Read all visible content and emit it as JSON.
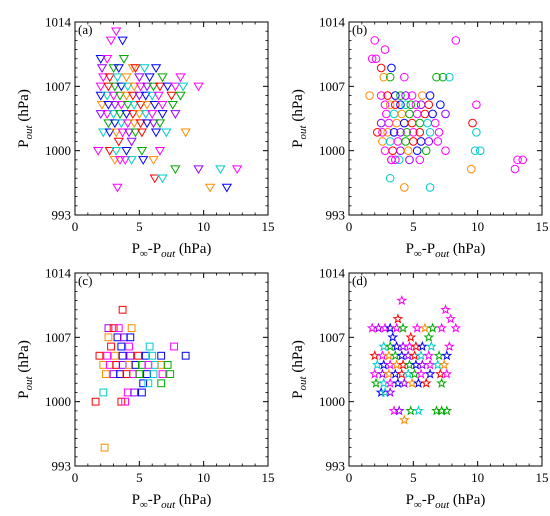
{
  "figure": {
    "panels": [
      "(a)",
      "(b)",
      "(c)",
      "(d)"
    ],
    "shared_axes": {
      "xlabel": {
        "main": "P",
        "sub1": "∞",
        "mid": "-P",
        "sub2": "out",
        "unit": " (hPa)"
      },
      "ylabel": {
        "main": "P",
        "sub": "out",
        "unit": " (hPa)"
      },
      "xticks": [
        "0",
        "5",
        "10",
        "15"
      ],
      "yticks": [
        "993",
        "1000",
        "1007",
        "1014"
      ]
    }
  },
  "palette": [
    "#ff00ff",
    "#0000ff",
    "#00aa00",
    "#ff8c00",
    "#ff0000",
    "#00cccc",
    "#9900ff"
  ],
  "chart_data": [
    {
      "panel": "(a)",
      "type": "scatter",
      "marker": "triangle-down",
      "xlabel": "P∞-Pout (hPa)",
      "ylabel": "Pout (hPa)",
      "xlim": [
        0,
        15
      ],
      "ylim": [
        993,
        1014
      ],
      "grid": false,
      "x": [
        3.2,
        2.8,
        3.7,
        2.0,
        2.5,
        3.8,
        4.5,
        2.1,
        3.0,
        3.4,
        4.7,
        5.4,
        6.3,
        2.2,
        2.7,
        3.3,
        4.0,
        5.0,
        5.8,
        6.8,
        8.2,
        2.0,
        2.6,
        3.1,
        3.6,
        4.1,
        4.6,
        5.1,
        5.6,
        6.1,
        6.6,
        7.2,
        7.8,
        8.4,
        9.6,
        2.0,
        2.5,
        3.0,
        3.5,
        4.0,
        4.5,
        5.0,
        5.5,
        6.0,
        6.5,
        7.5,
        8.2,
        2.1,
        2.6,
        3.1,
        3.6,
        4.1,
        4.6,
        5.1,
        5.6,
        6.2,
        6.8,
        7.6,
        2.0,
        2.5,
        3.0,
        3.5,
        4.0,
        4.5,
        5.0,
        5.5,
        6.0,
        6.8,
        7.8,
        2.6,
        3.1,
        3.6,
        4.1,
        4.6,
        5.1,
        5.6,
        6.1,
        6.6,
        2.2,
        2.7,
        3.2,
        3.7,
        4.2,
        4.7,
        5.2,
        6.3,
        7.1,
        8.6,
        1.8,
        2.7,
        3.2,
        4.0,
        5.2,
        6.6,
        3.4,
        4.4,
        3.1,
        3.5,
        3.9,
        4.4,
        5.3,
        6.1,
        7.8,
        9.6,
        11.3,
        12.6,
        6.2,
        6.8,
        3.3,
        10.5,
        11.8
      ],
      "y": [
        1013,
        1012,
        1012,
        1010,
        1010,
        1010,
        1009,
        1009,
        1009,
        1009,
        1009,
        1009,
        1009,
        1008,
        1008,
        1008,
        1008,
        1008,
        1008,
        1008,
        1008,
        1007,
        1007,
        1007,
        1007,
        1007,
        1007,
        1007,
        1007,
        1007,
        1007,
        1007,
        1007,
        1007,
        1007,
        1006,
        1006,
        1006,
        1006,
        1006,
        1006,
        1006,
        1006,
        1006,
        1006,
        1006,
        1006,
        1005,
        1005,
        1005,
        1005,
        1005,
        1005,
        1005,
        1005,
        1005,
        1005,
        1005,
        1004,
        1004,
        1004,
        1004,
        1004,
        1004,
        1004,
        1004,
        1004,
        1004,
        1004,
        1003,
        1003,
        1003,
        1003,
        1003,
        1003,
        1003,
        1003,
        1003,
        1002,
        1002,
        1002,
        1002,
        1002,
        1002,
        1002,
        1002,
        1002,
        1002,
        1000,
        1000,
        1000,
        1000,
        1000,
        1000,
        1001,
        1001,
        999,
        999,
        999,
        999,
        999,
        999,
        998,
        998,
        998,
        998,
        997,
        997,
        996,
        996,
        996
      ],
      "colors": [
        0,
        0,
        1,
        1,
        0,
        2,
        3,
        6,
        2,
        1,
        4,
        5,
        1,
        0,
        4,
        5,
        3,
        6,
        1,
        2,
        0,
        0,
        4,
        2,
        1,
        5,
        3,
        0,
        6,
        2,
        4,
        1,
        0,
        5,
        0,
        1,
        5,
        0,
        2,
        3,
        4,
        6,
        1,
        5,
        0,
        4,
        2,
        3,
        1,
        6,
        0,
        2,
        5,
        4,
        3,
        1,
        0,
        2,
        6,
        0,
        5,
        2,
        1,
        4,
        3,
        5,
        0,
        1,
        6,
        2,
        1,
        5,
        0,
        3,
        4,
        1,
        6,
        2,
        5,
        1,
        3,
        0,
        6,
        2,
        4,
        1,
        5,
        3,
        0,
        4,
        5,
        1,
        2,
        0,
        4,
        6,
        3,
        0,
        0,
        5,
        1,
        3,
        2,
        6,
        5,
        0,
        4,
        5,
        0,
        3,
        1,
        0,
        0
      ]
    },
    {
      "panel": "(b)",
      "type": "scatter",
      "marker": "circle",
      "xlabel": "P∞-Pout (hPa)",
      "ylabel": "Pout (hPa)",
      "xlim": [
        0,
        15
      ],
      "ylim": [
        993,
        1014
      ],
      "grid": false,
      "x": [
        2.0,
        2.8,
        8.3,
        1.8,
        2.1,
        2.5,
        3.3,
        3.2,
        2.7,
        4.3,
        6.8,
        7.3,
        7.8,
        1.6,
        2.5,
        3.0,
        3.6,
        4.0,
        4.4,
        4.9,
        5.7,
        6.3,
        2.8,
        3.2,
        3.6,
        4.0,
        4.4,
        4.8,
        5.2,
        5.6,
        6.2,
        7.1,
        2.9,
        3.5,
        4.1,
        4.7,
        5.3,
        5.9,
        6.5,
        7.5,
        9.9,
        2.5,
        3.1,
        3.7,
        4.3,
        4.9,
        5.5,
        6.1,
        6.7,
        2.2,
        2.6,
        3.0,
        3.5,
        4.0,
        4.5,
        5.0,
        5.5,
        6.3,
        7.0,
        9.6,
        2.6,
        3.2,
        3.8,
        4.4,
        5.0,
        5.6,
        6.2,
        6.9,
        9.9,
        2.8,
        3.4,
        4.0,
        4.6,
        5.3,
        6.0,
        7.5,
        3.3,
        3.9,
        4.7,
        5.5,
        9.8,
        10.2,
        3.3,
        3.6,
        13.1,
        13.5,
        9.5,
        12.9,
        3.2,
        4.3,
        6.3
      ],
      "y": [
        1012,
        1011,
        1012,
        1010,
        1010,
        1009,
        1009,
        1008,
        1008,
        1008,
        1008,
        1008,
        1008,
        1006,
        1006,
        1006,
        1006,
        1006,
        1006,
        1006,
        1006,
        1006,
        1005,
        1005,
        1005,
        1005,
        1005,
        1005,
        1005,
        1005,
        1005,
        1005,
        1004,
        1004,
        1004,
        1004,
        1004,
        1004,
        1004,
        1004,
        1005,
        1003,
        1003,
        1003,
        1003,
        1003,
        1003,
        1003,
        1003,
        1002,
        1002,
        1002,
        1002,
        1002,
        1002,
        1002,
        1002,
        1002,
        1002,
        1003,
        1001,
        1001,
        1001,
        1001,
        1001,
        1001,
        1001,
        1001,
        1002,
        1000,
        1000,
        1000,
        1000,
        1000,
        1000,
        1000,
        999,
        999,
        999,
        999,
        1000,
        1000,
        999,
        999,
        999,
        999,
        998,
        998,
        997,
        996,
        996
      ],
      "colors": [
        0,
        0,
        0,
        0,
        0,
        4,
        1,
        2,
        3,
        0,
        2,
        2,
        5,
        3,
        0,
        4,
        1,
        2,
        6,
        0,
        3,
        1,
        0,
        3,
        4,
        1,
        5,
        2,
        0,
        6,
        4,
        1,
        0,
        5,
        3,
        2,
        0,
        4,
        1,
        6,
        0,
        6,
        0,
        3,
        1,
        4,
        2,
        5,
        0,
        4,
        0,
        3,
        1,
        6,
        2,
        0,
        4,
        5,
        0,
        4,
        3,
        5,
        0,
        2,
        4,
        1,
        6,
        0,
        5,
        0,
        4,
        6,
        3,
        1,
        2,
        0,
        0,
        5,
        6,
        0,
        5,
        5,
        0,
        0,
        0,
        0,
        3,
        0,
        5,
        3,
        5
      ]
    },
    {
      "panel": "(c)",
      "type": "scatter",
      "marker": "square",
      "xlabel": "P∞-Pout (hPa)",
      "ylabel": "Pout (hPa)",
      "xlim": [
        0,
        15
      ],
      "ylim": [
        993,
        1014
      ],
      "grid": false,
      "x": [
        3.7,
        2.6,
        3.0,
        3.4,
        4.4,
        2.6,
        3.3,
        3.8,
        4.3,
        2.8,
        3.6,
        4.2,
        5.8,
        7.7,
        1.9,
        2.5,
        3.1,
        3.7,
        4.3,
        4.9,
        5.5,
        6.0,
        6.7,
        8.6,
        2.2,
        2.7,
        3.2,
        3.7,
        4.2,
        4.7,
        5.2,
        5.7,
        6.2,
        6.7,
        7.2,
        2.4,
        3.0,
        3.5,
        4.0,
        4.5,
        5.0,
        5.6,
        6.1,
        6.8,
        7.4,
        5.3,
        5.7,
        6.7,
        2.2,
        4.1,
        4.6,
        5.2,
        1.6,
        3.6,
        3.9,
        2.3
      ],
      "y": [
        1010,
        1008,
        1008,
        1008,
        1008,
        1007,
        1007,
        1007,
        1007,
        1006,
        1006,
        1006,
        1006,
        1006,
        1005,
        1005,
        1005,
        1005,
        1005,
        1005,
        1005,
        1005,
        1005,
        1005,
        1004,
        1004,
        1004,
        1004,
        1004,
        1004,
        1004,
        1004,
        1004,
        1004,
        1004,
        1003,
        1003,
        1003,
        1003,
        1003,
        1003,
        1003,
        1003,
        1003,
        1003,
        1002,
        1002,
        1002,
        1001,
        1001,
        1001,
        1001,
        1000,
        1000,
        1000,
        995
      ],
      "colors": [
        4,
        6,
        4,
        0,
        3,
        3,
        1,
        6,
        1,
        4,
        1,
        0,
        5,
        0,
        4,
        0,
        3,
        1,
        6,
        4,
        1,
        5,
        1,
        1,
        3,
        0,
        4,
        6,
        3,
        1,
        2,
        0,
        5,
        3,
        2,
        3,
        6,
        1,
        4,
        0,
        2,
        1,
        5,
        0,
        2,
        1,
        5,
        2,
        5,
        0,
        6,
        1,
        4,
        4,
        0,
        3
      ]
    },
    {
      "panel": "(d)",
      "type": "scatter",
      "marker": "star",
      "xlabel": "P∞-Pout (hPa)",
      "ylabel": "Pout (hPa)",
      "xlim": [
        0,
        15
      ],
      "ylim": [
        993,
        1014
      ],
      "grid": false,
      "x": [
        4.1,
        7.5,
        3.8,
        7.9,
        1.8,
        2.3,
        2.8,
        3.2,
        3.7,
        4.2,
        5.3,
        5.9,
        6.5,
        7.2,
        8.3,
        3.4,
        4.8,
        6.2,
        2.7,
        3.2,
        3.7,
        4.2,
        4.7,
        5.2,
        5.7,
        6.4,
        7.8,
        2.0,
        2.6,
        3.1,
        3.6,
        4.1,
        4.6,
        5.1,
        5.6,
        6.2,
        7.0,
        7.6,
        2.2,
        2.7,
        3.2,
        3.7,
        4.2,
        4.7,
        5.2,
        5.7,
        6.3,
        6.9,
        7.4,
        2.0,
        2.6,
        3.1,
        3.6,
        4.1,
        4.6,
        5.1,
        5.6,
        6.3,
        7.1,
        7.6,
        2.1,
        2.7,
        3.2,
        3.8,
        4.3,
        4.9,
        5.4,
        6.0,
        7.2,
        2.5,
        2.8,
        3.2,
        3.5,
        3.9,
        4.8,
        5.4,
        6.8,
        7.2,
        7.6,
        4.3
      ],
      "y": [
        1011,
        1010,
        1009,
        1009,
        1008,
        1008,
        1008,
        1008,
        1008,
        1008,
        1008,
        1008,
        1008,
        1008,
        1008,
        1007,
        1007,
        1007,
        1006,
        1006,
        1006,
        1006,
        1006,
        1006,
        1006,
        1006,
        1006,
        1005,
        1005,
        1005,
        1005,
        1005,
        1005,
        1005,
        1005,
        1005,
        1005,
        1005,
        1004,
        1004,
        1004,
        1004,
        1004,
        1004,
        1004,
        1004,
        1004,
        1004,
        1004,
        1003,
        1003,
        1003,
        1003,
        1003,
        1003,
        1003,
        1003,
        1003,
        1003,
        1003,
        1002,
        1002,
        1002,
        1002,
        1002,
        1002,
        1002,
        1002,
        1002,
        1001,
        1001,
        1001,
        999,
        999,
        999,
        999,
        999,
        999,
        999,
        998
      ],
      "colors": [
        0,
        0,
        4,
        0,
        0,
        6,
        0,
        1,
        0,
        2,
        0,
        3,
        2,
        0,
        0,
        1,
        4,
        2,
        5,
        2,
        1,
        6,
        0,
        4,
        1,
        5,
        0,
        4,
        0,
        3,
        2,
        1,
        6,
        4,
        5,
        0,
        2,
        1,
        5,
        1,
        0,
        3,
        4,
        2,
        1,
        6,
        0,
        5,
        3,
        0,
        6,
        3,
        1,
        4,
        5,
        2,
        0,
        1,
        4,
        0,
        2,
        5,
        0,
        1,
        6,
        3,
        1,
        4,
        2,
        1,
        5,
        6,
        0,
        6,
        2,
        5,
        2,
        2,
        2,
        3
      ]
    }
  ]
}
